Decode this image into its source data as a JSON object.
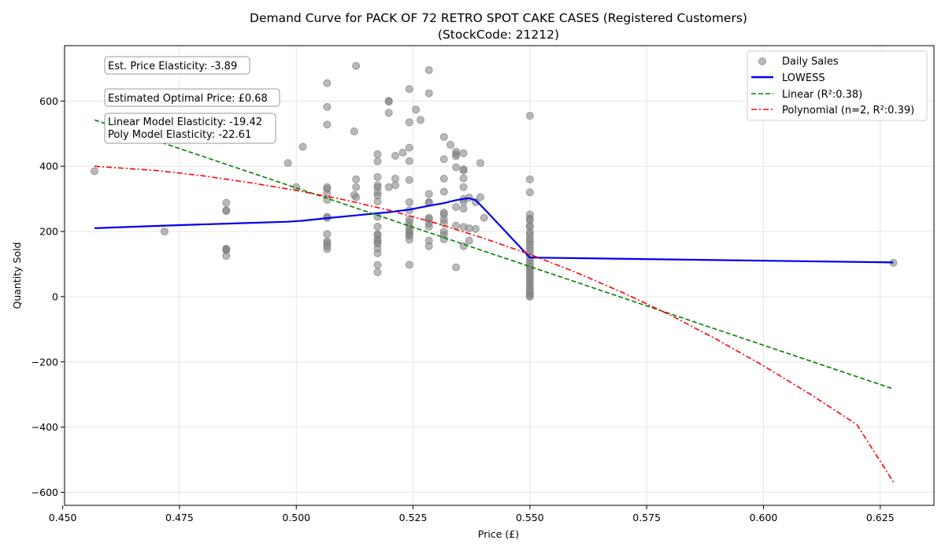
{
  "chart_data": {
    "type": "scatter",
    "title_line1": "Demand Curve for PACK OF 72 RETRO SPOT CAKE CASES (Registered Customers)",
    "title_line2": "(StockCode: 21212)",
    "xlabel": "Price (£)",
    "ylabel": "Quantity Sold",
    "xlim": [
      0.4504,
      0.6365
    ],
    "ylim": [
      -640,
      770
    ],
    "x_ticks": [
      0.45,
      0.475,
      0.5,
      0.525,
      0.55,
      0.575,
      0.6,
      0.625
    ],
    "x_tick_labels": [
      "0.450",
      "0.475",
      "0.500",
      "0.525",
      "0.550",
      "0.575",
      "0.600",
      "0.625"
    ],
    "y_ticks": [
      -600,
      -400,
      -200,
      0,
      200,
      400,
      600
    ],
    "y_tick_labels": [
      "−600",
      "−400",
      "−200",
      "0",
      "200",
      "400",
      "600"
    ],
    "grid": true,
    "legend_position": "top-right",
    "annotations": [
      "Est. Price Elasticity: -3.89",
      "Estimated Optimal Price: £0.68",
      "Linear Model Elasticity: -19.42",
      "Poly Model Elasticity: -22.61"
    ],
    "series": [
      {
        "name": "Daily Sales",
        "kind": "scatter",
        "color": "#808080",
        "points": [
          [
            0.4568,
            385
          ],
          [
            0.4718,
            200
          ],
          [
            0.485,
            288
          ],
          [
            0.485,
            265
          ],
          [
            0.485,
            263
          ],
          [
            0.485,
            147
          ],
          [
            0.485,
            145
          ],
          [
            0.485,
            143
          ],
          [
            0.485,
            125
          ],
          [
            0.4982,
            410
          ],
          [
            0.5,
            336
          ],
          [
            0.5014,
            460
          ],
          [
            0.5066,
            655
          ],
          [
            0.5066,
            582
          ],
          [
            0.5066,
            528
          ],
          [
            0.5066,
            336
          ],
          [
            0.5066,
            331
          ],
          [
            0.5066,
            317
          ],
          [
            0.5066,
            297
          ],
          [
            0.5066,
            245
          ],
          [
            0.5066,
            242
          ],
          [
            0.5066,
            192
          ],
          [
            0.5066,
            170
          ],
          [
            0.5066,
            165
          ],
          [
            0.5066,
            155
          ],
          [
            0.5066,
            146
          ],
          [
            0.5128,
            708
          ],
          [
            0.5124,
            507
          ],
          [
            0.5128,
            360
          ],
          [
            0.5128,
            336
          ],
          [
            0.5124,
            312
          ],
          [
            0.5128,
            305
          ],
          [
            0.5174,
            437
          ],
          [
            0.5174,
            415
          ],
          [
            0.5174,
            367
          ],
          [
            0.5174,
            342
          ],
          [
            0.5174,
            335
          ],
          [
            0.5174,
            320
          ],
          [
            0.5174,
            310
          ],
          [
            0.5174,
            292
          ],
          [
            0.5174,
            245
          ],
          [
            0.5174,
            215
          ],
          [
            0.5174,
            192
          ],
          [
            0.5174,
            188
          ],
          [
            0.5174,
            175
          ],
          [
            0.5174,
            168
          ],
          [
            0.5174,
            163
          ],
          [
            0.5174,
            148
          ],
          [
            0.5174,
            133
          ],
          [
            0.5174,
            97
          ],
          [
            0.5174,
            75
          ],
          [
            0.5198,
            601
          ],
          [
            0.5198,
            598
          ],
          [
            0.5198,
            564
          ],
          [
            0.5198,
            336
          ],
          [
            0.5212,
            432
          ],
          [
            0.5228,
            442
          ],
          [
            0.5212,
            362
          ],
          [
            0.5212,
            342
          ],
          [
            0.5242,
            637
          ],
          [
            0.5242,
            535
          ],
          [
            0.5242,
            457
          ],
          [
            0.5242,
            416
          ],
          [
            0.5242,
            358
          ],
          [
            0.5242,
            290
          ],
          [
            0.5242,
            265
          ],
          [
            0.5242,
            237
          ],
          [
            0.5242,
            228
          ],
          [
            0.5242,
            215
          ],
          [
            0.5242,
            205
          ],
          [
            0.5242,
            198
          ],
          [
            0.5242,
            192
          ],
          [
            0.5242,
            187
          ],
          [
            0.5242,
            175
          ],
          [
            0.5242,
            98
          ],
          [
            0.5256,
            574
          ],
          [
            0.5266,
            542
          ],
          [
            0.5284,
            695
          ],
          [
            0.5284,
            624
          ],
          [
            0.5284,
            315
          ],
          [
            0.5284,
            290
          ],
          [
            0.5284,
            288
          ],
          [
            0.5284,
            242
          ],
          [
            0.5284,
            238
          ],
          [
            0.5284,
            225
          ],
          [
            0.5284,
            215
          ],
          [
            0.5284,
            172
          ],
          [
            0.5284,
            155
          ],
          [
            0.5316,
            490
          ],
          [
            0.5316,
            422
          ],
          [
            0.5316,
            362
          ],
          [
            0.5316,
            322
          ],
          [
            0.5316,
            258
          ],
          [
            0.5316,
            252
          ],
          [
            0.5316,
            237
          ],
          [
            0.5316,
            226
          ],
          [
            0.5316,
            200
          ],
          [
            0.5316,
            190
          ],
          [
            0.5316,
            176
          ],
          [
            0.533,
            466
          ],
          [
            0.5342,
            445
          ],
          [
            0.5342,
            437
          ],
          [
            0.5342,
            431
          ],
          [
            0.5342,
            397
          ],
          [
            0.5342,
            275
          ],
          [
            0.5342,
            218
          ],
          [
            0.5342,
            90
          ],
          [
            0.5358,
            440
          ],
          [
            0.5358,
            391
          ],
          [
            0.5358,
            387
          ],
          [
            0.5358,
            363
          ],
          [
            0.5358,
            336
          ],
          [
            0.5358,
            300
          ],
          [
            0.5358,
            291
          ],
          [
            0.5358,
            270
          ],
          [
            0.5358,
            214
          ],
          [
            0.5358,
            155
          ],
          [
            0.537,
            304
          ],
          [
            0.537,
            210
          ],
          [
            0.537,
            172
          ],
          [
            0.5384,
            290
          ],
          [
            0.5384,
            208
          ],
          [
            0.5394,
            410
          ],
          [
            0.5394,
            305
          ],
          [
            0.5402,
            242
          ],
          [
            0.55,
            555
          ],
          [
            0.55,
            360
          ],
          [
            0.55,
            320
          ],
          [
            0.55,
            252
          ],
          [
            0.55,
            240
          ],
          [
            0.55,
            235
          ],
          [
            0.55,
            218
          ],
          [
            0.55,
            214
          ],
          [
            0.55,
            198
          ],
          [
            0.55,
            190
          ],
          [
            0.55,
            178
          ],
          [
            0.55,
            170
          ],
          [
            0.55,
            160
          ],
          [
            0.55,
            150
          ],
          [
            0.55,
            140
          ],
          [
            0.55,
            130
          ],
          [
            0.55,
            120
          ],
          [
            0.55,
            110
          ],
          [
            0.55,
            100
          ],
          [
            0.55,
            92
          ],
          [
            0.55,
            85
          ],
          [
            0.55,
            78
          ],
          [
            0.55,
            70
          ],
          [
            0.55,
            62
          ],
          [
            0.55,
            55
          ],
          [
            0.55,
            48
          ],
          [
            0.55,
            40
          ],
          [
            0.55,
            33
          ],
          [
            0.55,
            25
          ],
          [
            0.55,
            18
          ],
          [
            0.55,
            10
          ],
          [
            0.55,
            4
          ],
          [
            0.55,
            0
          ],
          [
            0.6278,
            104
          ]
        ]
      },
      {
        "name": "LOWESS",
        "kind": "line",
        "color": "#0000ee",
        "dash": "solid",
        "x": [
          0.4568,
          0.472,
          0.485,
          0.4982,
          0.5014,
          0.5066,
          0.5124,
          0.5174,
          0.5198,
          0.5242,
          0.5284,
          0.5316,
          0.5342,
          0.5358,
          0.537,
          0.5384,
          0.5402,
          0.55,
          0.6278
        ],
        "y": [
          210,
          218,
          224,
          230,
          233,
          241,
          249,
          256,
          259,
          267,
          279,
          287,
          296,
          300,
          302,
          296,
          270,
          120,
          105
        ]
      },
      {
        "name": "Linear (R²:0.38)",
        "kind": "line",
        "color": "#008000",
        "dash": "dashed",
        "x": [
          0.4568,
          0.6278
        ],
        "y": [
          542,
          -283
        ]
      },
      {
        "name": "Polynomial (n=2, R²:0.39)",
        "kind": "line",
        "color": "#ff0000",
        "dash": "dashdot",
        "x": [
          0.4568,
          0.47,
          0.48,
          0.49,
          0.5,
          0.51,
          0.52,
          0.53,
          0.54,
          0.55,
          0.56,
          0.57,
          0.58,
          0.59,
          0.6,
          0.61,
          0.62,
          0.6278
        ],
        "y": [
          400,
          387,
          371,
          350,
          326,
          298,
          265,
          225,
          180,
          130,
          74,
          12,
          -56,
          -131,
          -212,
          -299,
          -392,
          -568
        ]
      }
    ]
  }
}
